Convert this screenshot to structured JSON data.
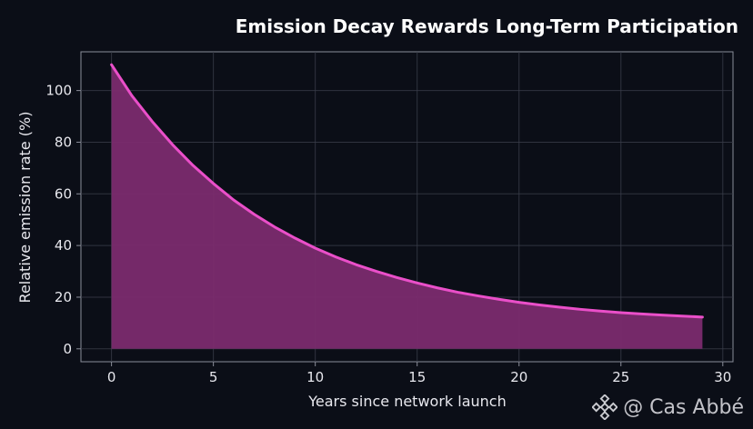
{
  "chart_data": {
    "type": "area",
    "title": "Emission Decay Rewards Long-Term Participation",
    "xlabel": "Years since network launch",
    "ylabel": "Relative emission rate (%)",
    "xlim": [
      -1.5,
      30.5
    ],
    "ylim": [
      -5,
      115
    ],
    "xticks": [
      0,
      5,
      10,
      15,
      20,
      25,
      30
    ],
    "yticks": [
      0,
      20,
      40,
      60,
      80,
      100
    ],
    "grid": true,
    "series": [
      {
        "x": [
          0,
          1,
          2,
          3,
          4,
          5,
          6,
          7,
          8,
          9,
          10,
          11,
          12,
          13,
          14,
          15,
          16,
          17,
          18,
          19,
          20,
          21,
          22,
          23,
          24,
          25,
          26,
          27,
          28,
          29
        ],
        "values": [
          110,
          98,
          88,
          79,
          71,
          64,
          57.6,
          52.1,
          47.2,
          42.9,
          39,
          35.6,
          32.6,
          30,
          27.6,
          25.5,
          23.6,
          21.9,
          20.5,
          19.2,
          18,
          17,
          16.1,
          15.3,
          14.6,
          14,
          13.5,
          13.1,
          12.7,
          12.3
        ]
      }
    ],
    "colors": {
      "background": "#0b0e17",
      "line": "#ea4fc9",
      "fill": "#7b2b6e",
      "grid": "#3a3d4a",
      "axes": "#8a8d99"
    }
  },
  "watermark": {
    "text": "@ Cas Abbé",
    "icon": "binance-logo-icon"
  }
}
